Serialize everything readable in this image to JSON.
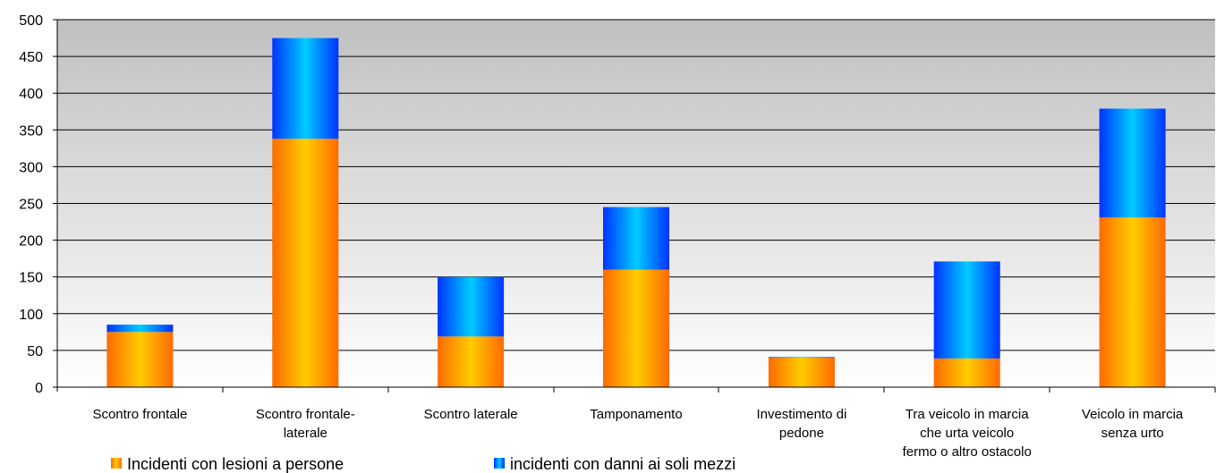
{
  "chart_data": {
    "type": "bar",
    "stacked": true,
    "categories": [
      [
        "Scontro frontale"
      ],
      [
        "Scontro frontale-",
        "laterale"
      ],
      [
        "Scontro laterale"
      ],
      [
        "Tamponamento"
      ],
      [
        "Investimento di",
        "pedone"
      ],
      [
        "Tra veicolo in marcia",
        "che urta veicolo",
        "fermo o altro ostacolo"
      ],
      [
        "Veicolo in marcia",
        "senza urto"
      ]
    ],
    "series": [
      {
        "name": "Incidenti con lesioni a persone",
        "values": [
          75,
          338,
          69,
          160,
          40,
          39,
          231
        ],
        "color_edge": "#ff6a00",
        "color_mid": "#ffcc00"
      },
      {
        "name": "incidenti con danni ai soli mezzi",
        "values": [
          10,
          137,
          81,
          85,
          1,
          132,
          148
        ],
        "color_edge": "#0033ff",
        "color_mid": "#00ccff"
      }
    ],
    "ylim": [
      0,
      500
    ],
    "yticks": [
      0,
      50,
      100,
      150,
      200,
      250,
      300,
      350,
      400,
      450,
      500
    ],
    "grid": true,
    "legend_position": "bottom"
  }
}
